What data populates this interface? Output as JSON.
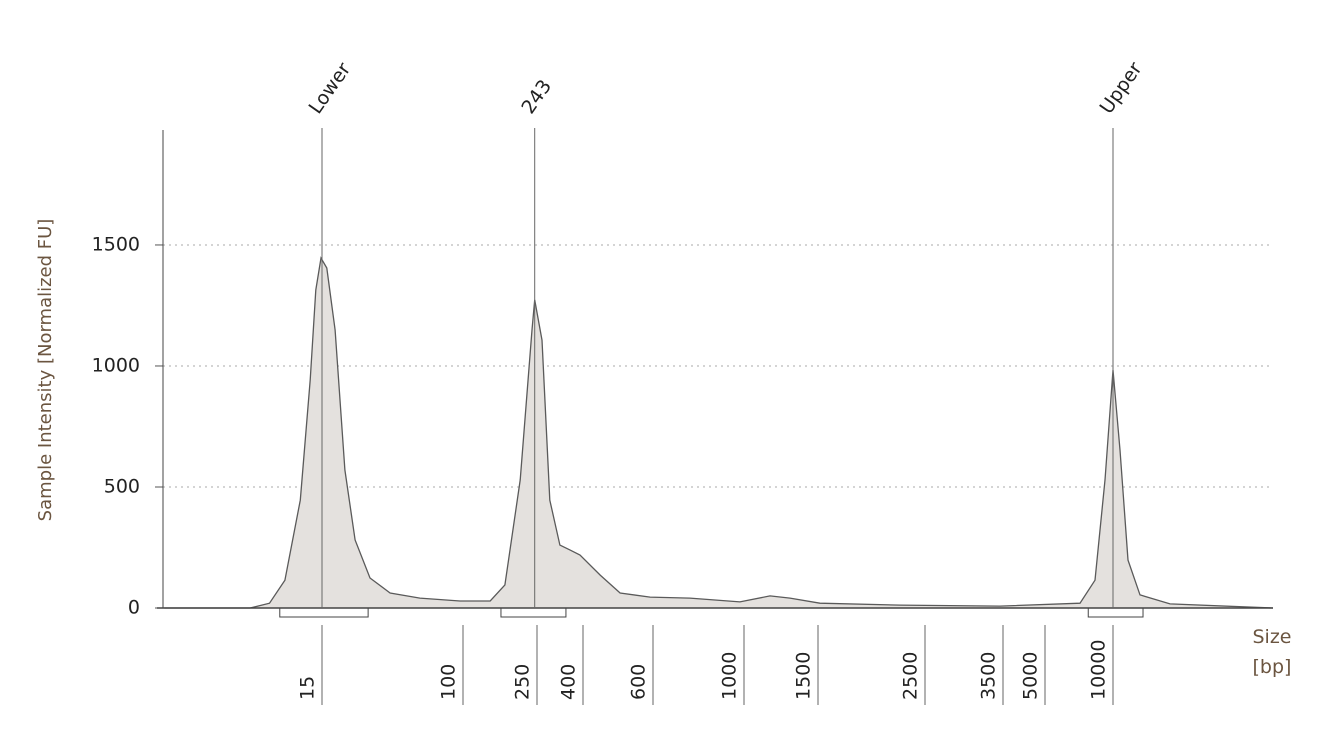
{
  "chart_data": {
    "type": "electropherogram",
    "y_label": "Sample Intensity [Normalized FU]",
    "x_label": "Size [bp]",
    "ylim": [
      0,
      1975
    ],
    "yticks": [
      0,
      500,
      1000,
      1500
    ],
    "xlim": [
      1.7,
      51100
    ],
    "xticks": [
      15,
      100,
      250,
      400,
      600,
      1000,
      1500,
      2500,
      3500,
      5000,
      10000
    ],
    "grid": true,
    "color": "#5a5a5a",
    "fill": "#e4e1de",
    "x": [
      1.8,
      5.7,
      7.4,
      9.1,
      11.2,
      12.8,
      13.8,
      14.8,
      16.0,
      17.9,
      20.4,
      23.4,
      28.6,
      37.5,
      56,
      96,
      140,
      168,
      203,
      235,
      243,
      263,
      285,
      316,
      350,
      388,
      442,
      496,
      590,
      738,
      977,
      1153,
      1287,
      1514,
      2218,
      3455,
      7140,
      8325,
      9220,
      10000,
      10740,
      11650,
      13170,
      17870,
      51100
    ],
    "values": [
      0,
      0,
      20,
      115,
      446,
      942,
      1314,
      1446,
      1405,
      1149,
      570,
      281,
      124,
      62,
      41,
      29,
      29,
      95,
      529,
      1149,
      1273,
      1107,
      446,
      260,
      240,
      219,
      136,
      62,
      45,
      41,
      25,
      50,
      41,
      20,
      12,
      8,
      20,
      115,
      529,
      983,
      653,
      198,
      54,
      17,
      0
    ],
    "peaks": [
      {
        "label": "Lower",
        "x": 15
      },
      {
        "label": "243",
        "x": 243
      },
      {
        "label": "Upper",
        "x": 10000
      }
    ],
    "regions": [
      [
        8.5,
        27.9
      ],
      [
        160,
        336
      ],
      [
        7770,
        13580
      ]
    ]
  }
}
